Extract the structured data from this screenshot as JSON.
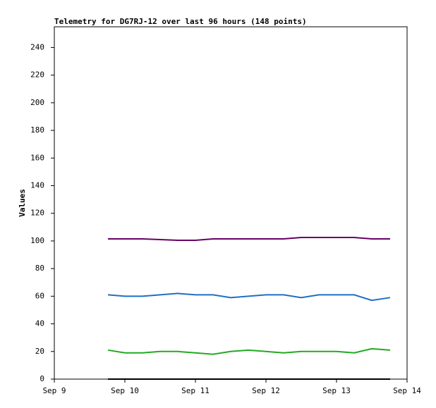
{
  "chart_data": {
    "type": "line",
    "title": "Telemetry for DG7RJ-12 over last 96 hours (148 points)",
    "y_label": "Values",
    "x": [
      9.76,
      10,
      10.25,
      10.5,
      10.75,
      11,
      11.25,
      11.5,
      11.75,
      12,
      12.25,
      12.5,
      12.75,
      13,
      13.25,
      13.5,
      13.76
    ],
    "series": [
      {
        "color": "#660066",
        "values": [
          101.5,
          101.5,
          101.5,
          101,
          100.5,
          100.5,
          101.5,
          101.5,
          101.5,
          101.5,
          101.5,
          102.5,
          102.5,
          102.5,
          102.5,
          101.5,
          101.5
        ]
      },
      {
        "color": "#1f6fc5",
        "values": [
          61,
          60,
          60,
          61,
          62,
          61,
          61,
          59,
          60,
          61,
          61,
          59,
          61,
          61,
          61,
          57,
          59
        ]
      },
      {
        "color": "#22aa22",
        "values": [
          21,
          19,
          19,
          20,
          20,
          19,
          18,
          20,
          21,
          20,
          19,
          20,
          20,
          20,
          19,
          22,
          21
        ]
      },
      {
        "color": "#000000",
        "values": [
          0,
          0,
          0,
          0,
          0,
          0,
          0,
          0,
          0,
          0,
          0,
          0,
          0,
          0,
          0,
          0,
          0
        ]
      }
    ],
    "xlim": [
      9,
      14
    ],
    "xticks": [
      {
        "value": 9,
        "label": "Sep 9"
      },
      {
        "value": 10,
        "label": "Sep 10"
      },
      {
        "value": 11,
        "label": "Sep 11"
      },
      {
        "value": 12,
        "label": "Sep 12"
      },
      {
        "value": 13,
        "label": "Sep 13"
      },
      {
        "value": 14,
        "label": "Sep 14"
      }
    ],
    "ylim": [
      0,
      255
    ],
    "yticks": [
      0,
      20,
      40,
      60,
      80,
      100,
      120,
      140,
      160,
      180,
      200,
      220,
      240
    ]
  }
}
